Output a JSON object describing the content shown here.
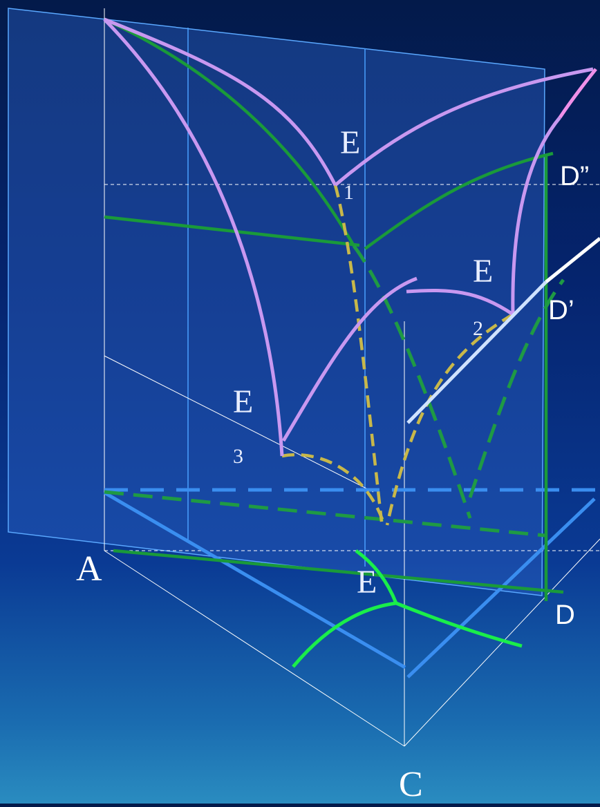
{
  "diagram": {
    "labels": {
      "A": "A",
      "C": "C",
      "D": "D",
      "D_prime": "D’",
      "D_double_prime": "D”",
      "E": "E",
      "E1_main": "E",
      "E1_sub": "1",
      "E2_main": "E",
      "E2_sub": "2",
      "E3_main": "E",
      "E3_sub": "3"
    },
    "colors": {
      "background_top": "#031a4a",
      "background_bottom": "#2a8cc0",
      "plane_fill": "#2a5fc0",
      "liquidus_curve": "#c898f0",
      "top_peak_curve": "#f090e8",
      "green_solid": "#1a9a3a",
      "green_dashed": "#1f9a44",
      "yellow_dashed": "#c8b84a",
      "blue_line": "#3a8ef0",
      "bright_green": "#1aee4a",
      "white_line": "#ffffff"
    }
  }
}
